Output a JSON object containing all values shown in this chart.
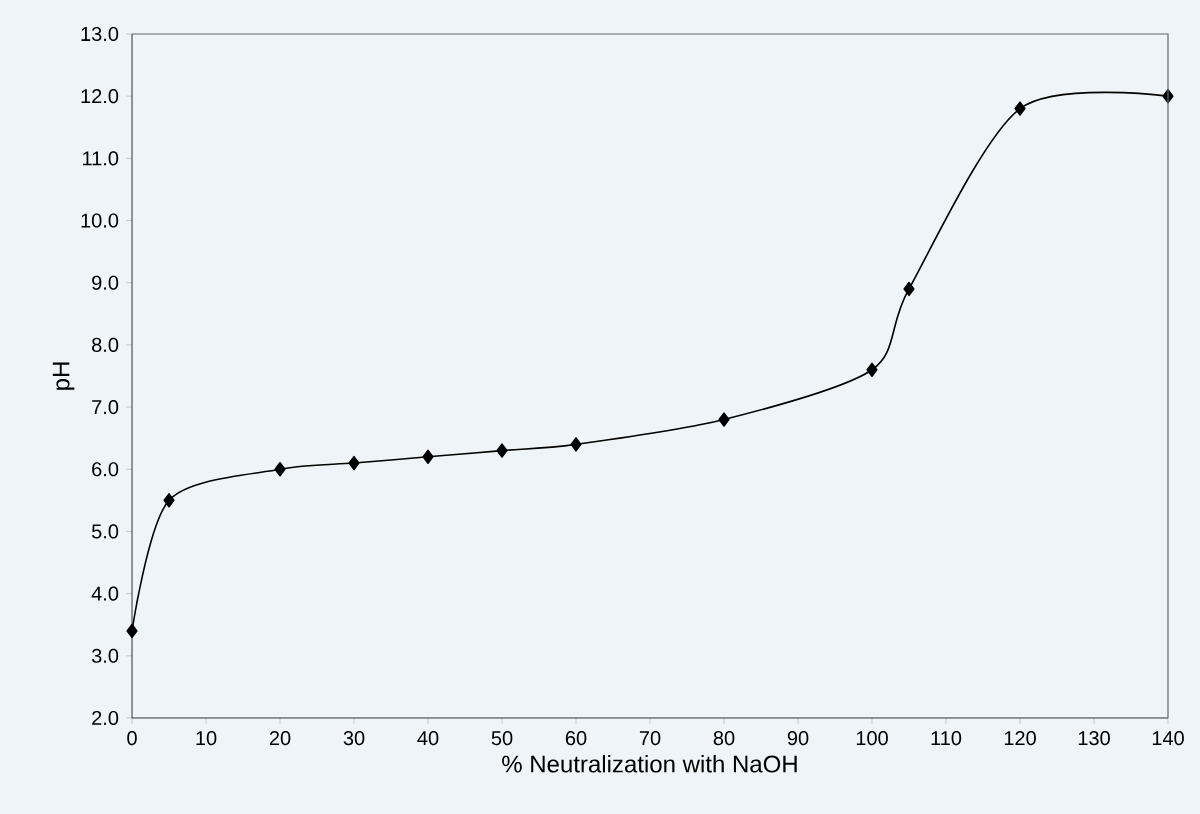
{
  "chart_data": {
    "type": "line",
    "xlabel": "% Neutralization with NaOH",
    "ylabel": "pH",
    "x": [
      0,
      5,
      20,
      30,
      40,
      50,
      60,
      80,
      100,
      105,
      120,
      140
    ],
    "series": [
      {
        "color": "#000000",
        "values": [
          3.4,
          5.5,
          6.0,
          6.1,
          6.2,
          6.3,
          6.4,
          6.8,
          7.6,
          8.9,
          11.8,
          12.0
        ]
      }
    ],
    "xlim": [
      0,
      140
    ],
    "xticks": [
      0,
      10,
      20,
      30,
      40,
      50,
      60,
      70,
      80,
      90,
      100,
      110,
      120,
      130,
      140
    ],
    "ylim": [
      2,
      13
    ],
    "yticks": [
      {
        "value": 2,
        "label": "2.0"
      },
      {
        "value": 3,
        "label": "3.0"
      },
      {
        "value": 4,
        "label": "4.0"
      },
      {
        "value": 5,
        "label": "5.0"
      },
      {
        "value": 6,
        "label": "6.0"
      },
      {
        "value": 7,
        "label": "7.0"
      },
      {
        "value": 8,
        "label": "8.0"
      },
      {
        "value": 9,
        "label": "9.0"
      },
      {
        "value": 10,
        "label": "10.0"
      },
      {
        "value": 11,
        "label": "11.0"
      },
      {
        "value": 12,
        "label": "12.0"
      },
      {
        "value": 13,
        "label": "13.0"
      }
    ],
    "marker": "diamond",
    "line_style": "solid",
    "grid": false
  }
}
